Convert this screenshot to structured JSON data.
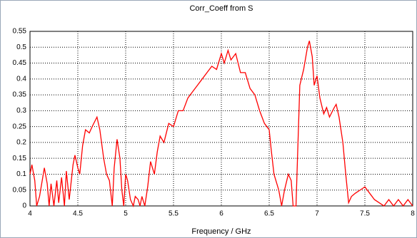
{
  "chart_data": {
    "type": "line",
    "title": "Corr_Coeff from S",
    "xlabel": "Frequency / GHz",
    "color": "#ff0000",
    "grid": true,
    "xlim": [
      4,
      8
    ],
    "xticks": [
      4,
      4.5,
      5,
      5.5,
      6,
      6.5,
      7,
      7.5,
      8
    ],
    "ylim": [
      0,
      0.55
    ],
    "yticks": [
      0,
      0.05,
      0.1,
      0.15,
      0.2,
      0.25,
      0.3,
      0.35,
      0.4,
      0.45,
      0.5,
      0.55
    ],
    "x": [
      4.0,
      4.02,
      4.05,
      4.07,
      4.1,
      4.15,
      4.18,
      4.2,
      4.22,
      4.25,
      4.28,
      4.3,
      4.33,
      4.36,
      4.38,
      4.41,
      4.45,
      4.47,
      4.5,
      4.52,
      4.55,
      4.58,
      4.62,
      4.65,
      4.7,
      4.73,
      4.77,
      4.8,
      4.83,
      4.86,
      4.88,
      4.91,
      4.94,
      4.96,
      4.98,
      5.0,
      5.02,
      5.05,
      5.08,
      5.1,
      5.13,
      5.15,
      5.17,
      5.2,
      5.23,
      5.26,
      5.3,
      5.33,
      5.36,
      5.4,
      5.45,
      5.5,
      5.55,
      5.6,
      5.65,
      5.7,
      5.75,
      5.8,
      5.85,
      5.9,
      5.95,
      6.0,
      6.03,
      6.07,
      6.1,
      6.15,
      6.2,
      6.25,
      6.3,
      6.35,
      6.4,
      6.45,
      6.5,
      6.52,
      6.55,
      6.6,
      6.63,
      6.66,
      6.7,
      6.73,
      6.75,
      6.78,
      6.82,
      6.86,
      6.9,
      6.92,
      6.95,
      6.97,
      7.0,
      7.03,
      7.07,
      7.1,
      7.13,
      7.18,
      7.2,
      7.23,
      7.27,
      7.3,
      7.33,
      7.36,
      7.4,
      7.45,
      7.5,
      7.55,
      7.6,
      7.65,
      7.7,
      7.75,
      7.8,
      7.85,
      7.9,
      7.95,
      8.0
    ],
    "values": [
      0.1,
      0.13,
      0.08,
      0.0,
      0.03,
      0.12,
      0.07,
      0.0,
      0.07,
      0.0,
      0.08,
      0.01,
      0.09,
      0.0,
      0.11,
      0.02,
      0.13,
      0.16,
      0.12,
      0.1,
      0.19,
      0.24,
      0.23,
      0.25,
      0.28,
      0.24,
      0.15,
      0.1,
      0.08,
      0.0,
      0.12,
      0.21,
      0.15,
      0.05,
      0.0,
      0.1,
      0.08,
      0.02,
      0.0,
      0.03,
      0.02,
      0.0,
      0.03,
      0.0,
      0.06,
      0.14,
      0.1,
      0.17,
      0.22,
      0.2,
      0.26,
      0.25,
      0.3,
      0.3,
      0.34,
      0.36,
      0.38,
      0.4,
      0.42,
      0.44,
      0.43,
      0.48,
      0.45,
      0.49,
      0.46,
      0.48,
      0.42,
      0.42,
      0.37,
      0.35,
      0.3,
      0.26,
      0.24,
      0.18,
      0.1,
      0.05,
      0.0,
      0.05,
      0.1,
      0.08,
      0.0,
      0.0,
      0.38,
      0.43,
      0.5,
      0.52,
      0.47,
      0.38,
      0.41,
      0.34,
      0.29,
      0.31,
      0.28,
      0.31,
      0.32,
      0.28,
      0.2,
      0.1,
      0.01,
      0.03,
      0.04,
      0.05,
      0.06,
      0.04,
      0.02,
      0.01,
      0.0,
      0.02,
      0.0,
      0.02,
      0.0,
      0.02,
      0.0
    ]
  }
}
